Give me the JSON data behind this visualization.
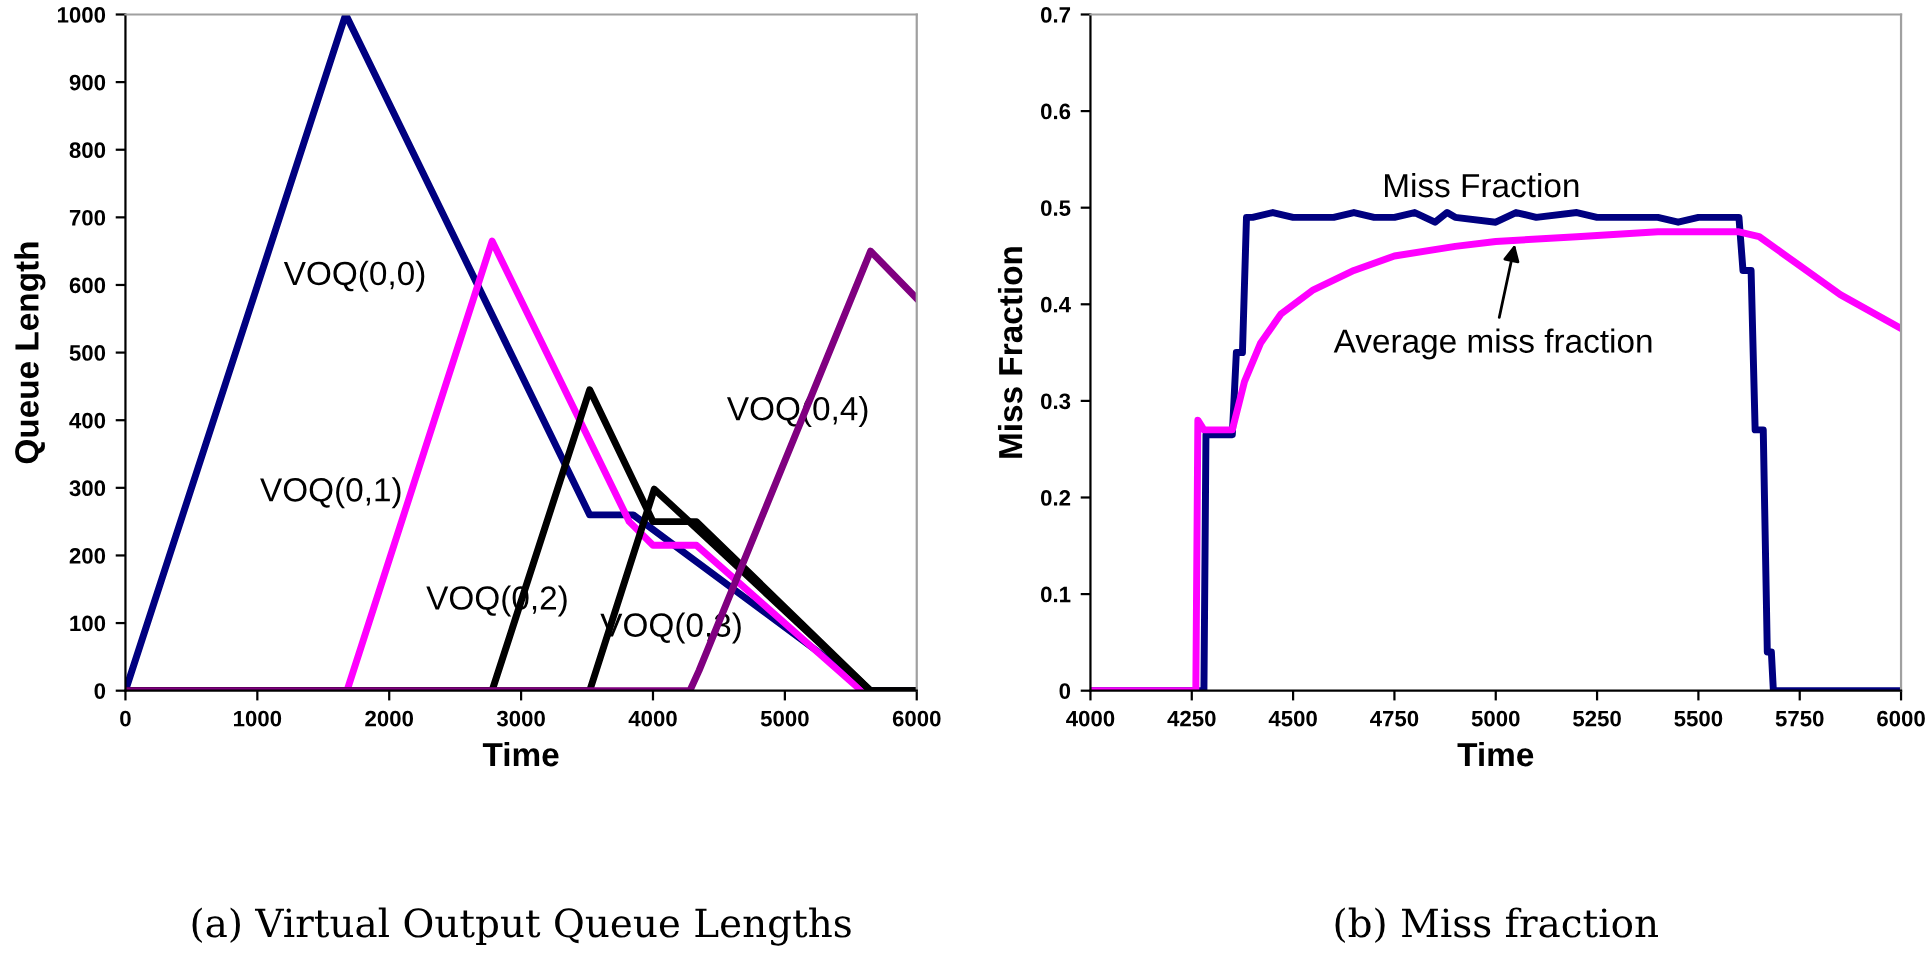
{
  "chart_data": [
    {
      "type": "line",
      "title": "(a) Virtual Output Queue Lengths",
      "xlabel": "Time",
      "ylabel": "Queue Length",
      "xlim": [
        0,
        6000
      ],
      "xticks": [
        0,
        1000,
        2000,
        3000,
        4000,
        5000,
        6000
      ],
      "ylim": [
        0,
        1000
      ],
      "yticks": [
        0,
        100,
        200,
        300,
        400,
        500,
        600,
        700,
        800,
        900,
        1000
      ],
      "grid": false,
      "legend": false,
      "marker": "none",
      "line_style": "solid",
      "series": [
        {
          "name": "VOQ(0,0)",
          "color": "#000080",
          "x": [
            0,
            1670,
            3520,
            3850,
            5650,
            6000
          ],
          "values": [
            0,
            1000,
            260,
            260,
            0,
            0
          ]
        },
        {
          "name": "VOQ(0,1)",
          "color": "#ff00ff",
          "x": [
            0,
            1680,
            2780,
            3820,
            4000,
            4330,
            5580
          ],
          "values": [
            0,
            0,
            665,
            250,
            215,
            215,
            0
          ]
        },
        {
          "name": "VOQ(0,2)",
          "color": "#000000",
          "x": [
            0,
            2780,
            3520,
            4000,
            4330,
            5650,
            6000
          ],
          "values": [
            0,
            0,
            445,
            250,
            250,
            0,
            0
          ]
        },
        {
          "name": "VOQ(0,3)",
          "color": "#000000",
          "x": [
            0,
            3520,
            4010,
            4330,
            5650,
            6000
          ],
          "values": [
            0,
            0,
            298,
            240,
            0,
            0
          ]
        },
        {
          "name": "VOQ(0,4)",
          "color": "#800080",
          "x": [
            0,
            4280,
            4350,
            5650,
            6000
          ],
          "values": [
            0,
            0,
            30,
            650,
            580
          ]
        }
      ]
    },
    {
      "type": "line",
      "title": "(b) Miss fraction",
      "xlabel": "Time",
      "ylabel": "Miss Fraction",
      "xlim": [
        4000,
        6000
      ],
      "xticks": [
        4000,
        4250,
        4500,
        4750,
        5000,
        5250,
        5500,
        5750,
        6000
      ],
      "ylim": [
        0,
        0.7
      ],
      "yticks": [
        0,
        0.1,
        0.2,
        0.3,
        0.4,
        0.5,
        0.6,
        0.7
      ],
      "grid": false,
      "legend": false,
      "marker": "none",
      "line_style": "solid",
      "series": [
        {
          "name": "Miss Fraction",
          "color": "#000080",
          "x": [
            4000,
            4280,
            4285,
            4350,
            4360,
            4375,
            4385,
            4400,
            4450,
            4500,
            4600,
            4650,
            4700,
            4750,
            4800,
            4850,
            4880,
            4900,
            5000,
            5050,
            5100,
            5200,
            5250,
            5400,
            5450,
            5500,
            5600,
            5610,
            5630,
            5640,
            5660,
            5670,
            5680,
            5685,
            6000
          ],
          "values": [
            0,
            0,
            0.265,
            0.265,
            0.35,
            0.35,
            0.49,
            0.49,
            0.495,
            0.49,
            0.49,
            0.495,
            0.49,
            0.49,
            0.495,
            0.485,
            0.495,
            0.49,
            0.485,
            0.495,
            0.49,
            0.495,
            0.49,
            0.49,
            0.485,
            0.49,
            0.49,
            0.435,
            0.435,
            0.27,
            0.27,
            0.04,
            0.04,
            0,
            0
          ]
        },
        {
          "name": "Average miss fraction",
          "color": "#ff00ff",
          "x": [
            4000,
            4260,
            4265,
            4280,
            4350,
            4380,
            4420,
            4470,
            4550,
            4650,
            4750,
            4900,
            5000,
            5200,
            5400,
            5600,
            5650,
            5750,
            5850,
            6000
          ],
          "values": [
            0,
            0,
            0.28,
            0.27,
            0.27,
            0.32,
            0.36,
            0.39,
            0.415,
            0.435,
            0.45,
            0.46,
            0.465,
            0.47,
            0.475,
            0.475,
            0.47,
            0.44,
            0.41,
            0.375
          ]
        }
      ]
    }
  ]
}
